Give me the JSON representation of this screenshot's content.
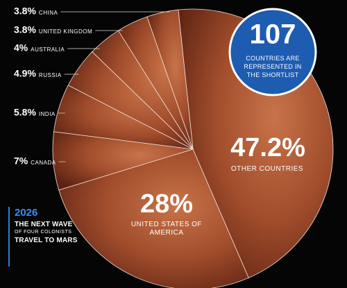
{
  "chart_data": {
    "type": "pie",
    "categories": [
      "OTHER COUNTRIES",
      "UNITED STATES OF AMERICA",
      "CANADA",
      "INDIA",
      "RUSSIA",
      "AUSTRALIA",
      "UNITED KINGDOM",
      "CHINA"
    ],
    "values": [
      47.2,
      28,
      7,
      5.8,
      4.9,
      4,
      3.8,
      3.8
    ],
    "value_labels": [
      "47.2%",
      "28%",
      "7%",
      "5.8%",
      "4.9%",
      "4%",
      "3.8%",
      "3.8%"
    ]
  },
  "badge": {
    "number": 107,
    "text": "COUNTRIES ARE REPRESENTED IN THE SHORTLIST"
  },
  "sidebar": {
    "year": "2026",
    "line1": "THE NEXT WAVE",
    "line2": "OF FOUR COLONISTS",
    "line3": "TRAVEL TO MARS"
  }
}
